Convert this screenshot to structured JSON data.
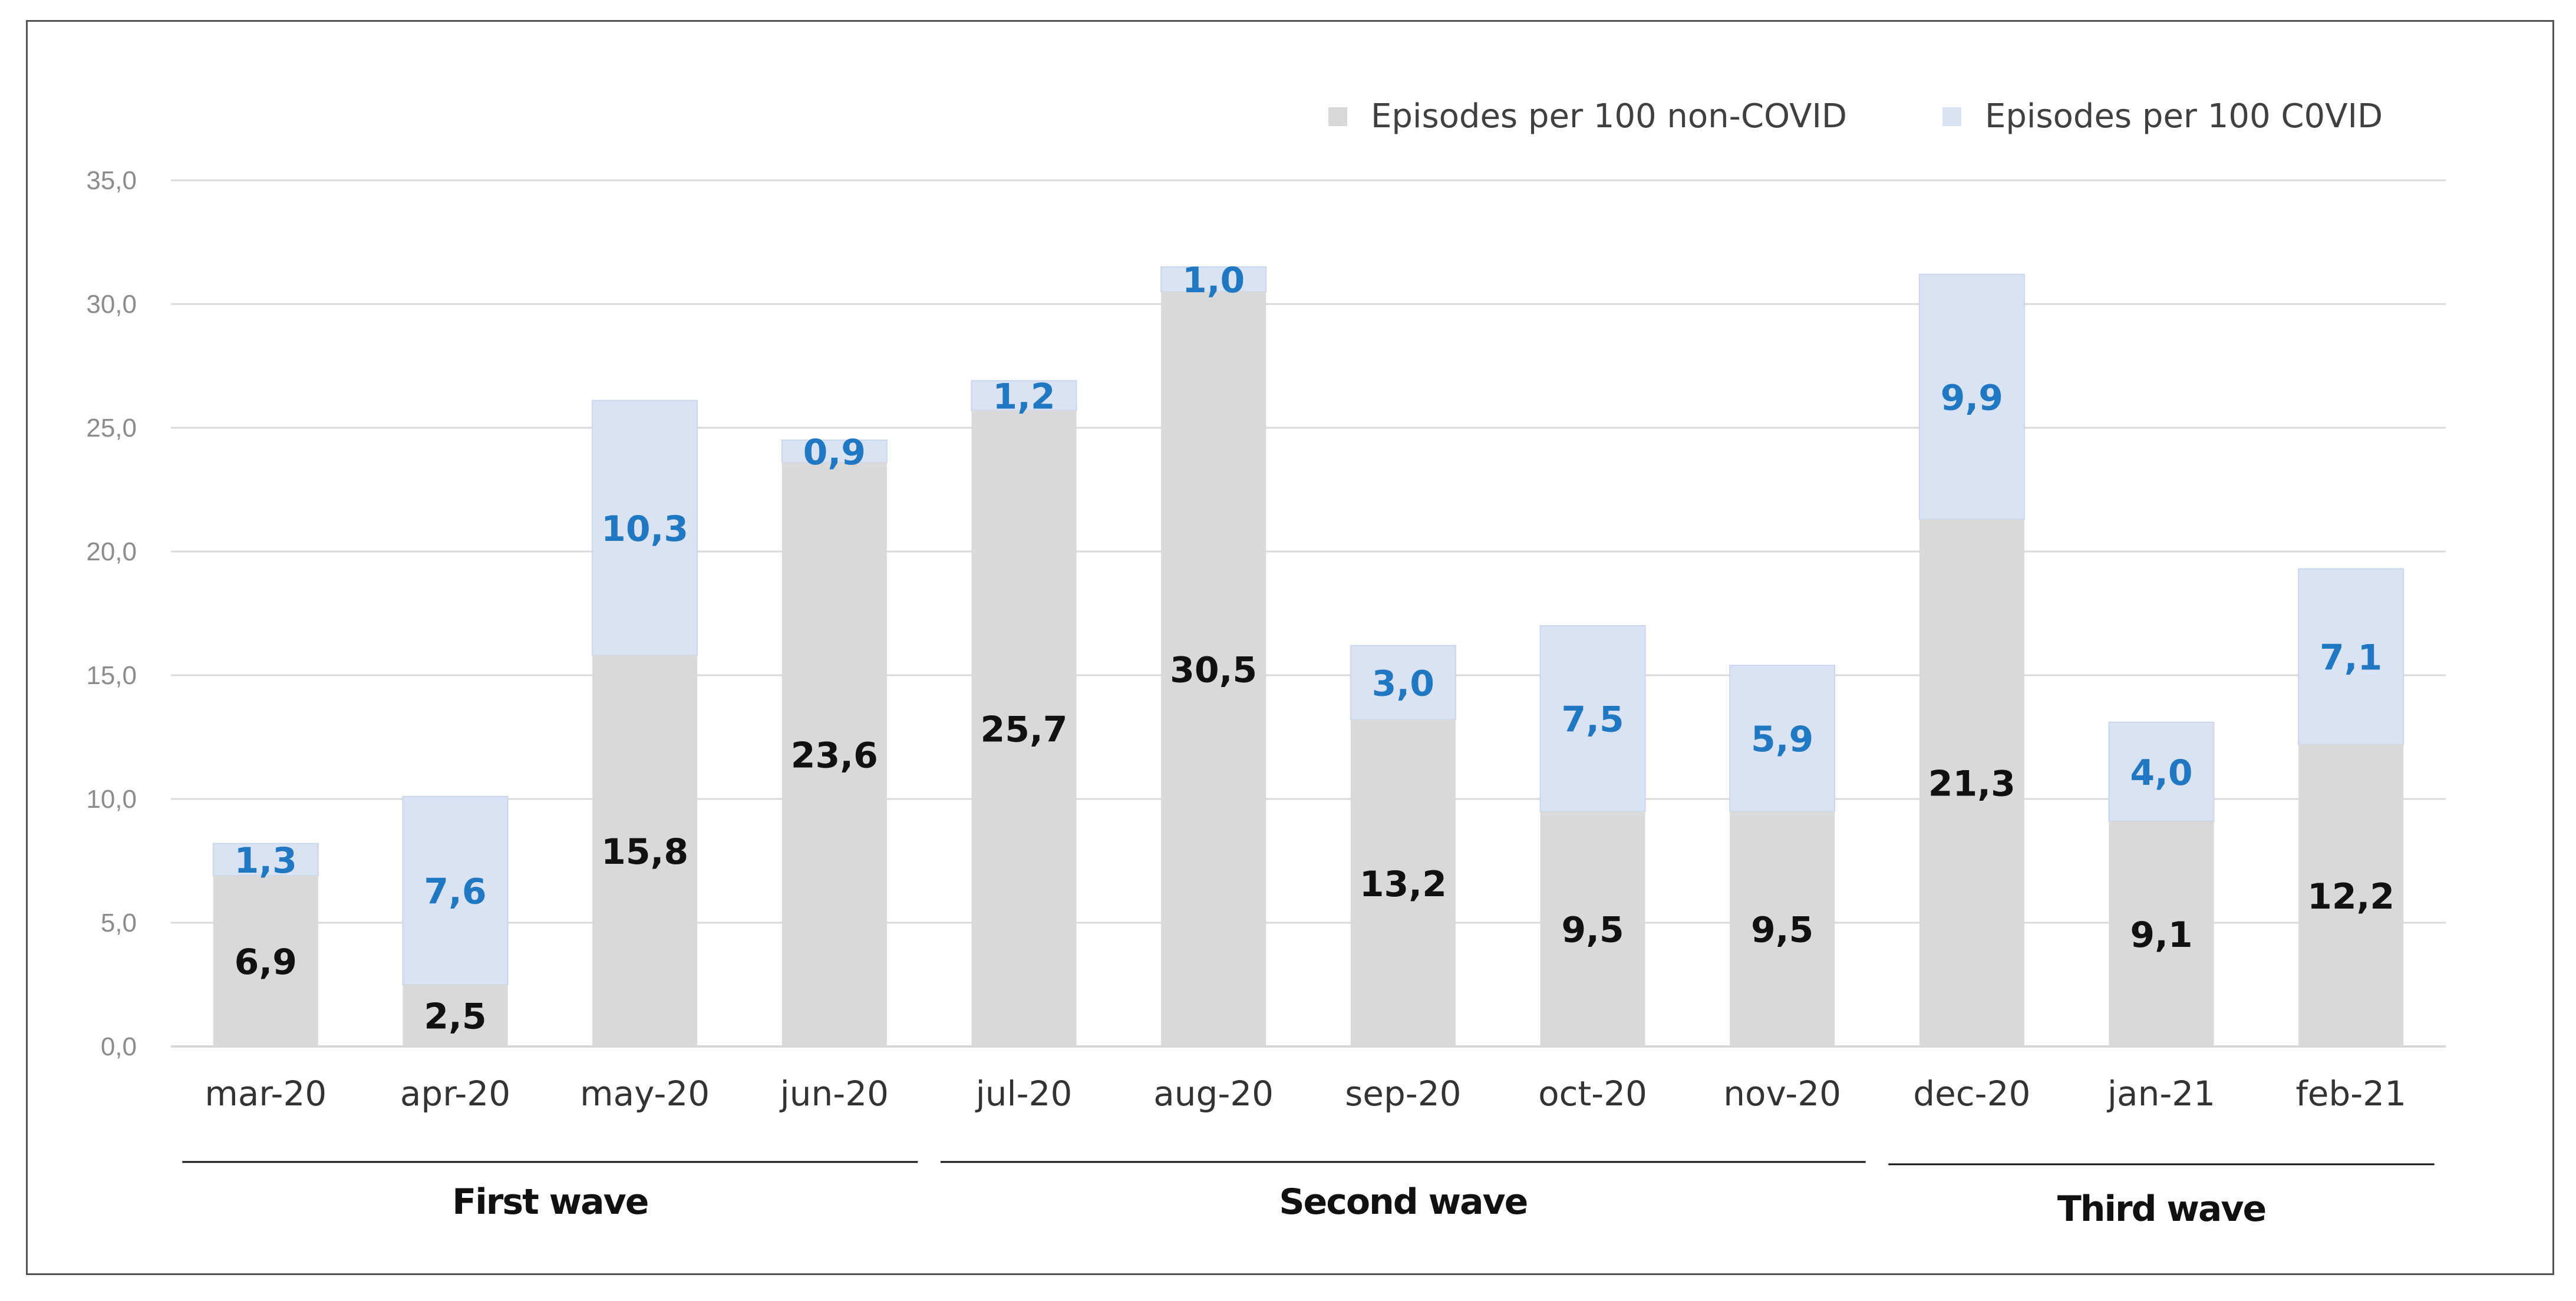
{
  "chart_data": {
    "type": "bar",
    "stacked": true,
    "title": "",
    "xlabel": "",
    "ylabel": "",
    "ylim": [
      0,
      35
    ],
    "y_ticks": [
      "0,0",
      "5,0",
      "10,0",
      "15,0",
      "20,0",
      "25,0",
      "30,0",
      "35,0"
    ],
    "y_tick_values": [
      0,
      5,
      10,
      15,
      20,
      25,
      30,
      35
    ],
    "grid": true,
    "legend_position": "top-right",
    "categories": [
      "mar-20",
      "apr-20",
      "may-20",
      "jun-20",
      "jul-20",
      "aug-20",
      "sep-20",
      "oct-20",
      "nov-20",
      "dec-20",
      "jan-21",
      "feb-21"
    ],
    "series": [
      {
        "name": "Episodes per 100 non-COVID",
        "color": "#d9d9d9",
        "label_color": "#111111",
        "values": [
          6.9,
          2.5,
          15.8,
          23.6,
          25.7,
          30.5,
          13.2,
          9.5,
          9.5,
          21.3,
          9.1,
          12.2
        ],
        "labels": [
          "6,9",
          "2,5",
          "15,8",
          "23,6",
          "25,7",
          "30,5",
          "13,2",
          "9,5",
          "9,5",
          "21,3",
          "9,1",
          "12,2"
        ]
      },
      {
        "name": "Episodes per 100 C0VID",
        "color": "#dae3f3",
        "label_color": "#1f78c1",
        "values": [
          1.3,
          7.6,
          10.3,
          0.9,
          1.2,
          1.0,
          3.0,
          7.5,
          5.9,
          9.9,
          4.0,
          7.1
        ],
        "labels": [
          "1,3",
          "7,6",
          "10,3",
          "0,9",
          "1,2",
          "1,0",
          "3,0",
          "7,5",
          "5,9",
          "9,9",
          "4,0",
          "7,1"
        ]
      }
    ],
    "groups": [
      {
        "label": "First wave",
        "start_category": 0,
        "end_category": 3
      },
      {
        "label": "Second wave",
        "start_category": 4,
        "end_category": 8
      },
      {
        "label": "Third wave",
        "start_category": 9,
        "end_category": 11
      }
    ]
  }
}
